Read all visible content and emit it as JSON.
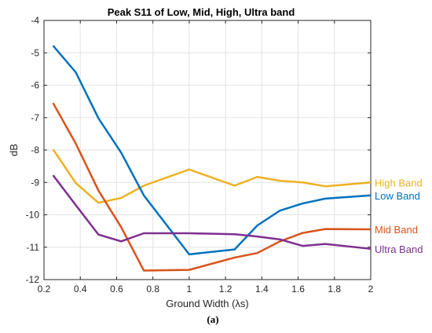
{
  "chart_data": {
    "type": "line",
    "title": "Peak S11 of Low, Mid, High, Ultra band",
    "xlabel": "Ground Width (λs)",
    "ylabel": "dB",
    "xlim": [
      0.2,
      2
    ],
    "ylim": [
      -12,
      -4
    ],
    "xticks": [
      0.2,
      0.4,
      0.6,
      0.8,
      1,
      1.2,
      1.4,
      1.6,
      1.8,
      2
    ],
    "yticks": [
      -12,
      -11,
      -10,
      -9,
      -8,
      -7,
      -6,
      -5,
      -4
    ],
    "grid": true,
    "legend": "series labels at right end of lines",
    "x": [
      0.25,
      0.375,
      0.5,
      0.625,
      0.75,
      1.0,
      1.25,
      1.375,
      1.5,
      1.625,
      1.75,
      2.0
    ],
    "series": [
      {
        "name": "High Band",
        "color": "#EDB120",
        "values": [
          -7.98,
          -9.02,
          -9.63,
          -9.48,
          -9.1,
          -8.6,
          -9.1,
          -8.83,
          -8.95,
          -9.0,
          -9.12,
          -9.0
        ]
      },
      {
        "name": "Low Band",
        "color": "#0072BD",
        "values": [
          -4.78,
          -5.6,
          -7.02,
          -8.08,
          -9.4,
          -11.22,
          -11.07,
          -10.33,
          -9.87,
          -9.65,
          -9.5,
          -9.4
        ]
      },
      {
        "name": "Mid Band",
        "color": "#D95319",
        "values": [
          -6.55,
          -7.8,
          -9.25,
          -10.38,
          -11.72,
          -11.7,
          -11.32,
          -11.18,
          -10.82,
          -10.56,
          -10.44,
          -10.45
        ]
      },
      {
        "name": "Ultra Band",
        "color": "#7E2F8E",
        "values": [
          -8.78,
          -9.7,
          -10.61,
          -10.82,
          -10.57,
          -10.57,
          -10.6,
          -10.67,
          -10.76,
          -10.96,
          -10.9,
          -11.05
        ]
      }
    ]
  },
  "caption": "(a)"
}
